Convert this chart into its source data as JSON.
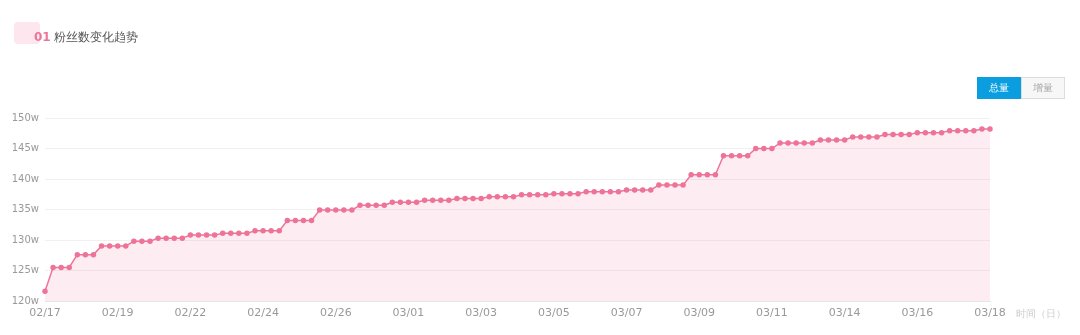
{
  "chart_data": {
    "type": "area",
    "title": "01 粉丝数变化趋势",
    "annotations": [
      "总量",
      "增量"
    ],
    "xlabel": "时间（日）",
    "categories": [
      "02/17",
      null,
      null,
      null,
      null,
      null,
      null,
      null,
      null,
      "02/19",
      null,
      null,
      null,
      null,
      null,
      null,
      null,
      null,
      "02/22",
      null,
      null,
      null,
      null,
      null,
      null,
      null,
      null,
      "02/24",
      null,
      null,
      null,
      null,
      null,
      null,
      null,
      null,
      "02/26",
      null,
      null,
      null,
      null,
      null,
      null,
      null,
      null,
      "03/01",
      null,
      null,
      null,
      null,
      null,
      null,
      null,
      null,
      "03/03",
      null,
      null,
      null,
      null,
      null,
      null,
      null,
      null,
      "03/05",
      null,
      null,
      null,
      null,
      null,
      null,
      null,
      null,
      "03/07",
      null,
      null,
      null,
      null,
      null,
      null,
      null,
      null,
      "03/09",
      null,
      null,
      null,
      null,
      null,
      null,
      null,
      null,
      "03/11",
      null,
      null,
      null,
      null,
      null,
      null,
      null,
      null,
      "03/14",
      null,
      null,
      null,
      null,
      null,
      null,
      null,
      null,
      "03/16",
      null,
      null,
      null,
      null,
      null,
      null,
      null,
      null,
      "03/18"
    ],
    "series": [
      {
        "color": "#ee7399",
        "values": [
          121.6,
          125.5,
          125.5,
          125.5,
          127.6,
          127.6,
          127.6,
          129.0,
          129.0,
          129.0,
          129.0,
          129.8,
          129.8,
          129.8,
          130.3,
          130.3,
          130.3,
          130.3,
          130.8,
          130.8,
          130.8,
          130.8,
          131.1,
          131.1,
          131.1,
          131.1,
          131.5,
          131.5,
          131.5,
          131.5,
          133.2,
          133.2,
          133.2,
          133.2,
          134.9,
          134.9,
          134.9,
          134.9,
          134.9,
          135.7,
          135.7,
          135.7,
          135.7,
          136.2,
          136.2,
          136.2,
          136.2,
          136.5,
          136.5,
          136.5,
          136.5,
          136.8,
          136.8,
          136.8,
          136.8,
          137.1,
          137.1,
          137.1,
          137.1,
          137.4,
          137.4,
          137.4,
          137.4,
          137.6,
          137.6,
          137.6,
          137.6,
          137.9,
          137.9,
          137.9,
          137.9,
          137.9,
          138.2,
          138.2,
          138.2,
          138.2,
          139.0,
          139.0,
          139.0,
          139.0,
          140.7,
          140.7,
          140.7,
          140.7,
          143.8,
          143.8,
          143.8,
          143.8,
          145.0,
          145.0,
          145.0,
          145.9,
          145.9,
          145.9,
          145.9,
          145.9,
          146.4,
          146.4,
          146.4,
          146.4,
          146.9,
          146.9,
          146.9,
          146.9,
          147.3,
          147.3,
          147.3,
          147.3,
          147.6,
          147.6,
          147.6,
          147.6,
          147.9,
          147.9,
          147.9,
          147.9,
          148.2,
          148.2
        ]
      }
    ],
    "ylim": [
      120,
      150
    ],
    "yticks": [
      {
        "value": 120,
        "label": "120w"
      },
      {
        "value": 125,
        "label": "125w"
      },
      {
        "value": 130,
        "label": "130w"
      },
      {
        "value": 135,
        "label": "135w"
      },
      {
        "value": 140,
        "label": "140w"
      },
      {
        "value": 145,
        "label": "145w"
      },
      {
        "value": 150,
        "label": "150w"
      }
    ],
    "grid": "y",
    "marker": "circle",
    "line_style": "solid"
  }
}
